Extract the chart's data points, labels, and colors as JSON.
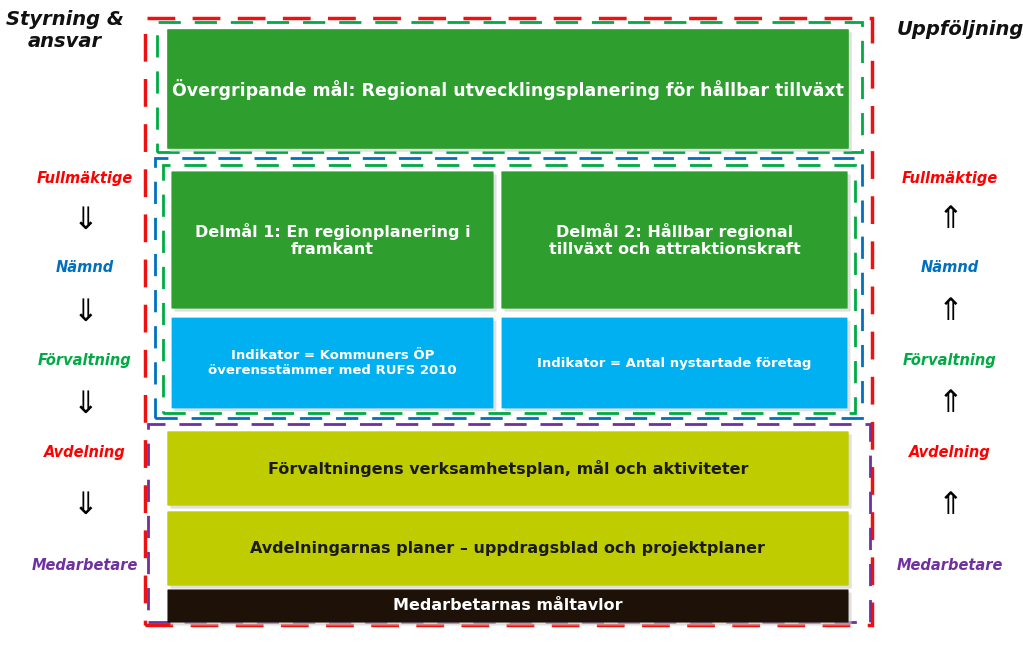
{
  "bg_color": "#ffffff",
  "title_left": "Styrning &\nansvar",
  "title_right": "Uppföljning",
  "left_labels": [
    "Fullmäktige",
    "Nämnd",
    "Förvaltning",
    "Avdelning",
    "Medarbetare"
  ],
  "left_colors": [
    "#ff0000",
    "#0070c0",
    "#00b050",
    "#ff0000",
    "#7030a0"
  ],
  "right_labels": [
    "Fullmäktige",
    "Nämnd",
    "Förvaltning",
    "Avdelning",
    "Medarbetare"
  ],
  "right_colors": [
    "#ff0000",
    "#0070c0",
    "#00b050",
    "#ff0000",
    "#7030a0"
  ],
  "box1_text": "Övergripande mål: Regional utvecklingsplanering för hållbar tillväxt",
  "box1_color": "#2e9e2e",
  "box1_text_color": "#ffffff",
  "box2a_text": "Delmål 1: En regionplanering i\nframkant",
  "box2b_text": "Delmål 2: Hållbar regional\ntillväxt och attraktionskraft",
  "box2_color": "#2e9e2e",
  "box2_text_color": "#ffffff",
  "box3a_text": "Indikator = Kommuners ÖP\növerensstämmer med RUFS 2010",
  "box3b_text": "Indikator = Antal nystartade företag",
  "box3_color": "#00b0f0",
  "box3_text_color": "#ffffff",
  "box4_text": "Förvaltningens verksamhetsplan, mål och aktiviteter",
  "box4_color": "#bfcc00",
  "box4_text_color": "#1a1a1a",
  "box5_text": "Avdelningarnas planer – uppdragsblad och projektplaner",
  "box5_color": "#bfcc00",
  "box5_text_color": "#1a1a1a",
  "box6_text": "Medarbetarnas måltavlor",
  "box6_color": "#1e1208",
  "box6_text_color": "#ffffff",
  "border_red": "#ee1111",
  "border_blue": "#0070c0",
  "border_green": "#00aa44",
  "border_purple": "#7030a0"
}
